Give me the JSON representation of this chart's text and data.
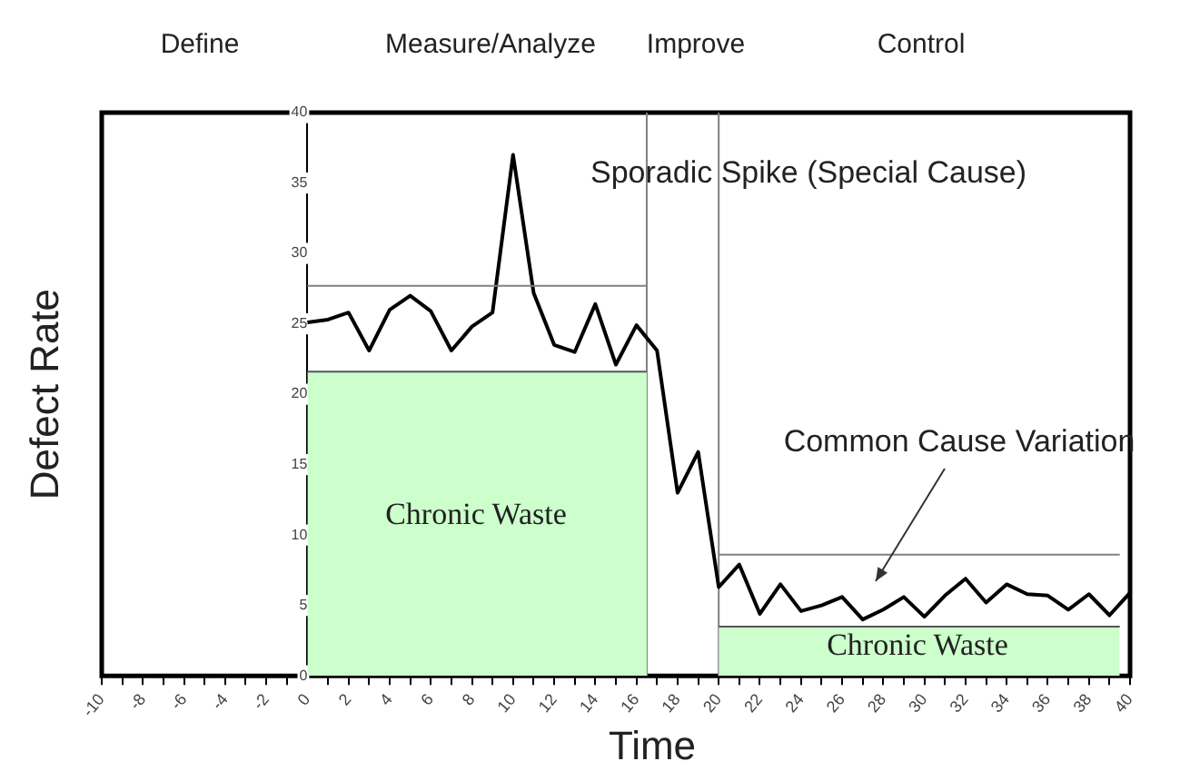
{
  "chart_data": {
    "type": "line",
    "xlabel": "Time",
    "ylabel": "Defect Rate",
    "xlim": [
      -10,
      40
    ],
    "ylim": [
      0,
      40
    ],
    "xticks": [
      -10,
      {
        "value": -9,
        "label": null
      },
      -8,
      {
        "value": -7,
        "label": null
      },
      -6,
      {
        "value": -5,
        "label": null
      },
      -4,
      {
        "value": -3,
        "label": null
      },
      -2,
      {
        "value": -1,
        "label": null
      },
      0,
      {
        "value": 1,
        "label": null
      },
      2,
      {
        "value": 3,
        "label": null
      },
      4,
      {
        "value": 5,
        "label": null
      },
      6,
      {
        "value": 7,
        "label": null
      },
      8,
      {
        "value": 9,
        "label": null
      },
      10,
      {
        "value": 11,
        "label": null
      },
      12,
      {
        "value": 13,
        "label": null
      },
      14,
      {
        "value": 15,
        "label": null
      },
      16,
      {
        "value": 17,
        "label": null
      },
      18,
      {
        "value": 19,
        "label": null
      },
      20,
      {
        "value": 21,
        "label": null
      },
      22,
      {
        "value": 23,
        "label": null
      },
      24,
      {
        "value": 25,
        "label": null
      },
      26,
      {
        "value": 27,
        "label": null
      },
      28,
      {
        "value": 29,
        "label": null
      },
      30,
      {
        "value": 31,
        "label": null
      },
      32,
      {
        "value": 33,
        "label": null
      },
      34,
      {
        "value": 35,
        "label": null
      },
      36,
      {
        "value": 37,
        "label": null
      },
      38,
      {
        "value": 39,
        "label": null
      },
      40
    ],
    "yticks": [
      0,
      5,
      10,
      15,
      20,
      25,
      30,
      35,
      40
    ],
    "series": [
      {
        "type": "area",
        "color": "#ccffcc",
        "x": [
          0,
          16.5
        ],
        "values": [
          21.6,
          21.6
        ]
      },
      {
        "type": "area",
        "color": "#ccffcc",
        "x": [
          20,
          39.5
        ],
        "values": [
          3.5,
          3.5
        ]
      },
      {
        "type": "line",
        "color": "#808080",
        "x": [
          0,
          16.5
        ],
        "values": [
          27.7,
          27.7
        ]
      },
      {
        "type": "line",
        "color": "#808080",
        "x": [
          20,
          39.5
        ],
        "values": [
          8.6,
          8.6
        ]
      },
      {
        "color": "#000000",
        "x": [
          0,
          1,
          2,
          3,
          4,
          5,
          6,
          7,
          8,
          9,
          10,
          11,
          12,
          13,
          14,
          15,
          16,
          17,
          18,
          19,
          20,
          21,
          22,
          23,
          24,
          25,
          26,
          27,
          28,
          29,
          30,
          31,
          32,
          33,
          34,
          35,
          36,
          37,
          38,
          39,
          40
        ],
        "values": [
          25.1,
          25.3,
          25.8,
          23.1,
          26,
          27,
          25.9,
          23.1,
          24.8,
          25.8,
          37,
          27.2,
          23.5,
          23,
          26.4,
          22.1,
          24.9,
          23.1,
          13,
          15.9,
          6.3,
          7.9,
          4.4,
          6.5,
          4.6,
          5,
          5.6,
          4,
          4.7,
          5.6,
          4.2,
          5.7,
          6.9,
          5.2,
          6.5,
          5.8,
          5.7,
          4.7,
          5.8,
          4.3,
          5.9
        ]
      }
    ],
    "ref_lines": [
      {
        "axis": "x",
        "value": 16.5,
        "color": "#808080"
      },
      {
        "axis": "x",
        "value": 20,
        "color": "#808080"
      }
    ],
    "annotations": [
      "Define",
      "Measure/Analyze",
      "Improve",
      "Control",
      "Sporadic Spike (Special Cause)",
      "Chronic Waste",
      "Chronic Waste",
      "Common Cause Variation"
    ],
    "legend": false,
    "marker": "none",
    "line_style": "solid",
    "grid": false
  }
}
